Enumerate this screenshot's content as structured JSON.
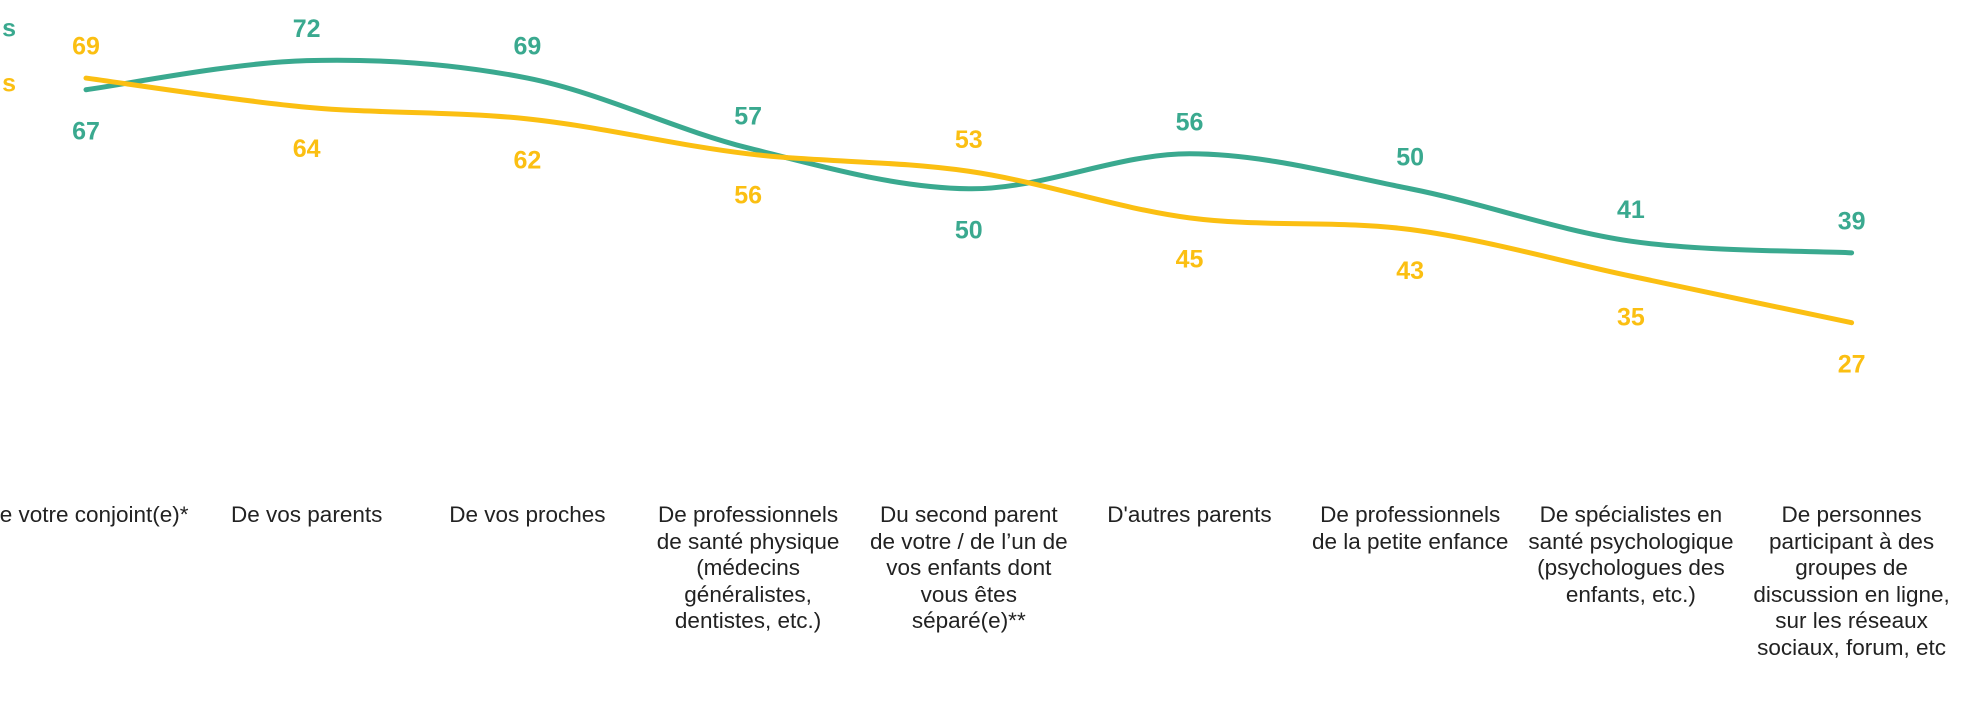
{
  "chart_data": {
    "type": "line",
    "categories": [
      "De votre conjoint(e)*",
      "De vos parents",
      "De vos proches",
      "De professionnels de santé physique (médecins généralistes, dentistes, etc.)",
      "Du second parent de votre / de l’un de vos enfants dont vous êtes séparé(e)**",
      "D'autres parents",
      "De professionnels de la petite enfance",
      "De spécialistes en santé psychologique (psychologues des enfants, etc.)",
      "De personnes participant à des groupes de discussion en ligne, sur les réseaux sociaux, forum, etc"
    ],
    "series": [
      {
        "name": "s",
        "color": "#3aa98f",
        "values": [
          67,
          72,
          69,
          57,
          50,
          56,
          50,
          41,
          39
        ]
      },
      {
        "name": "s",
        "color": "#fbbf12",
        "values": [
          69,
          64,
          62,
          56,
          53,
          45,
          43,
          35,
          27
        ]
      }
    ],
    "ylim": [
      0,
      80
    ]
  }
}
